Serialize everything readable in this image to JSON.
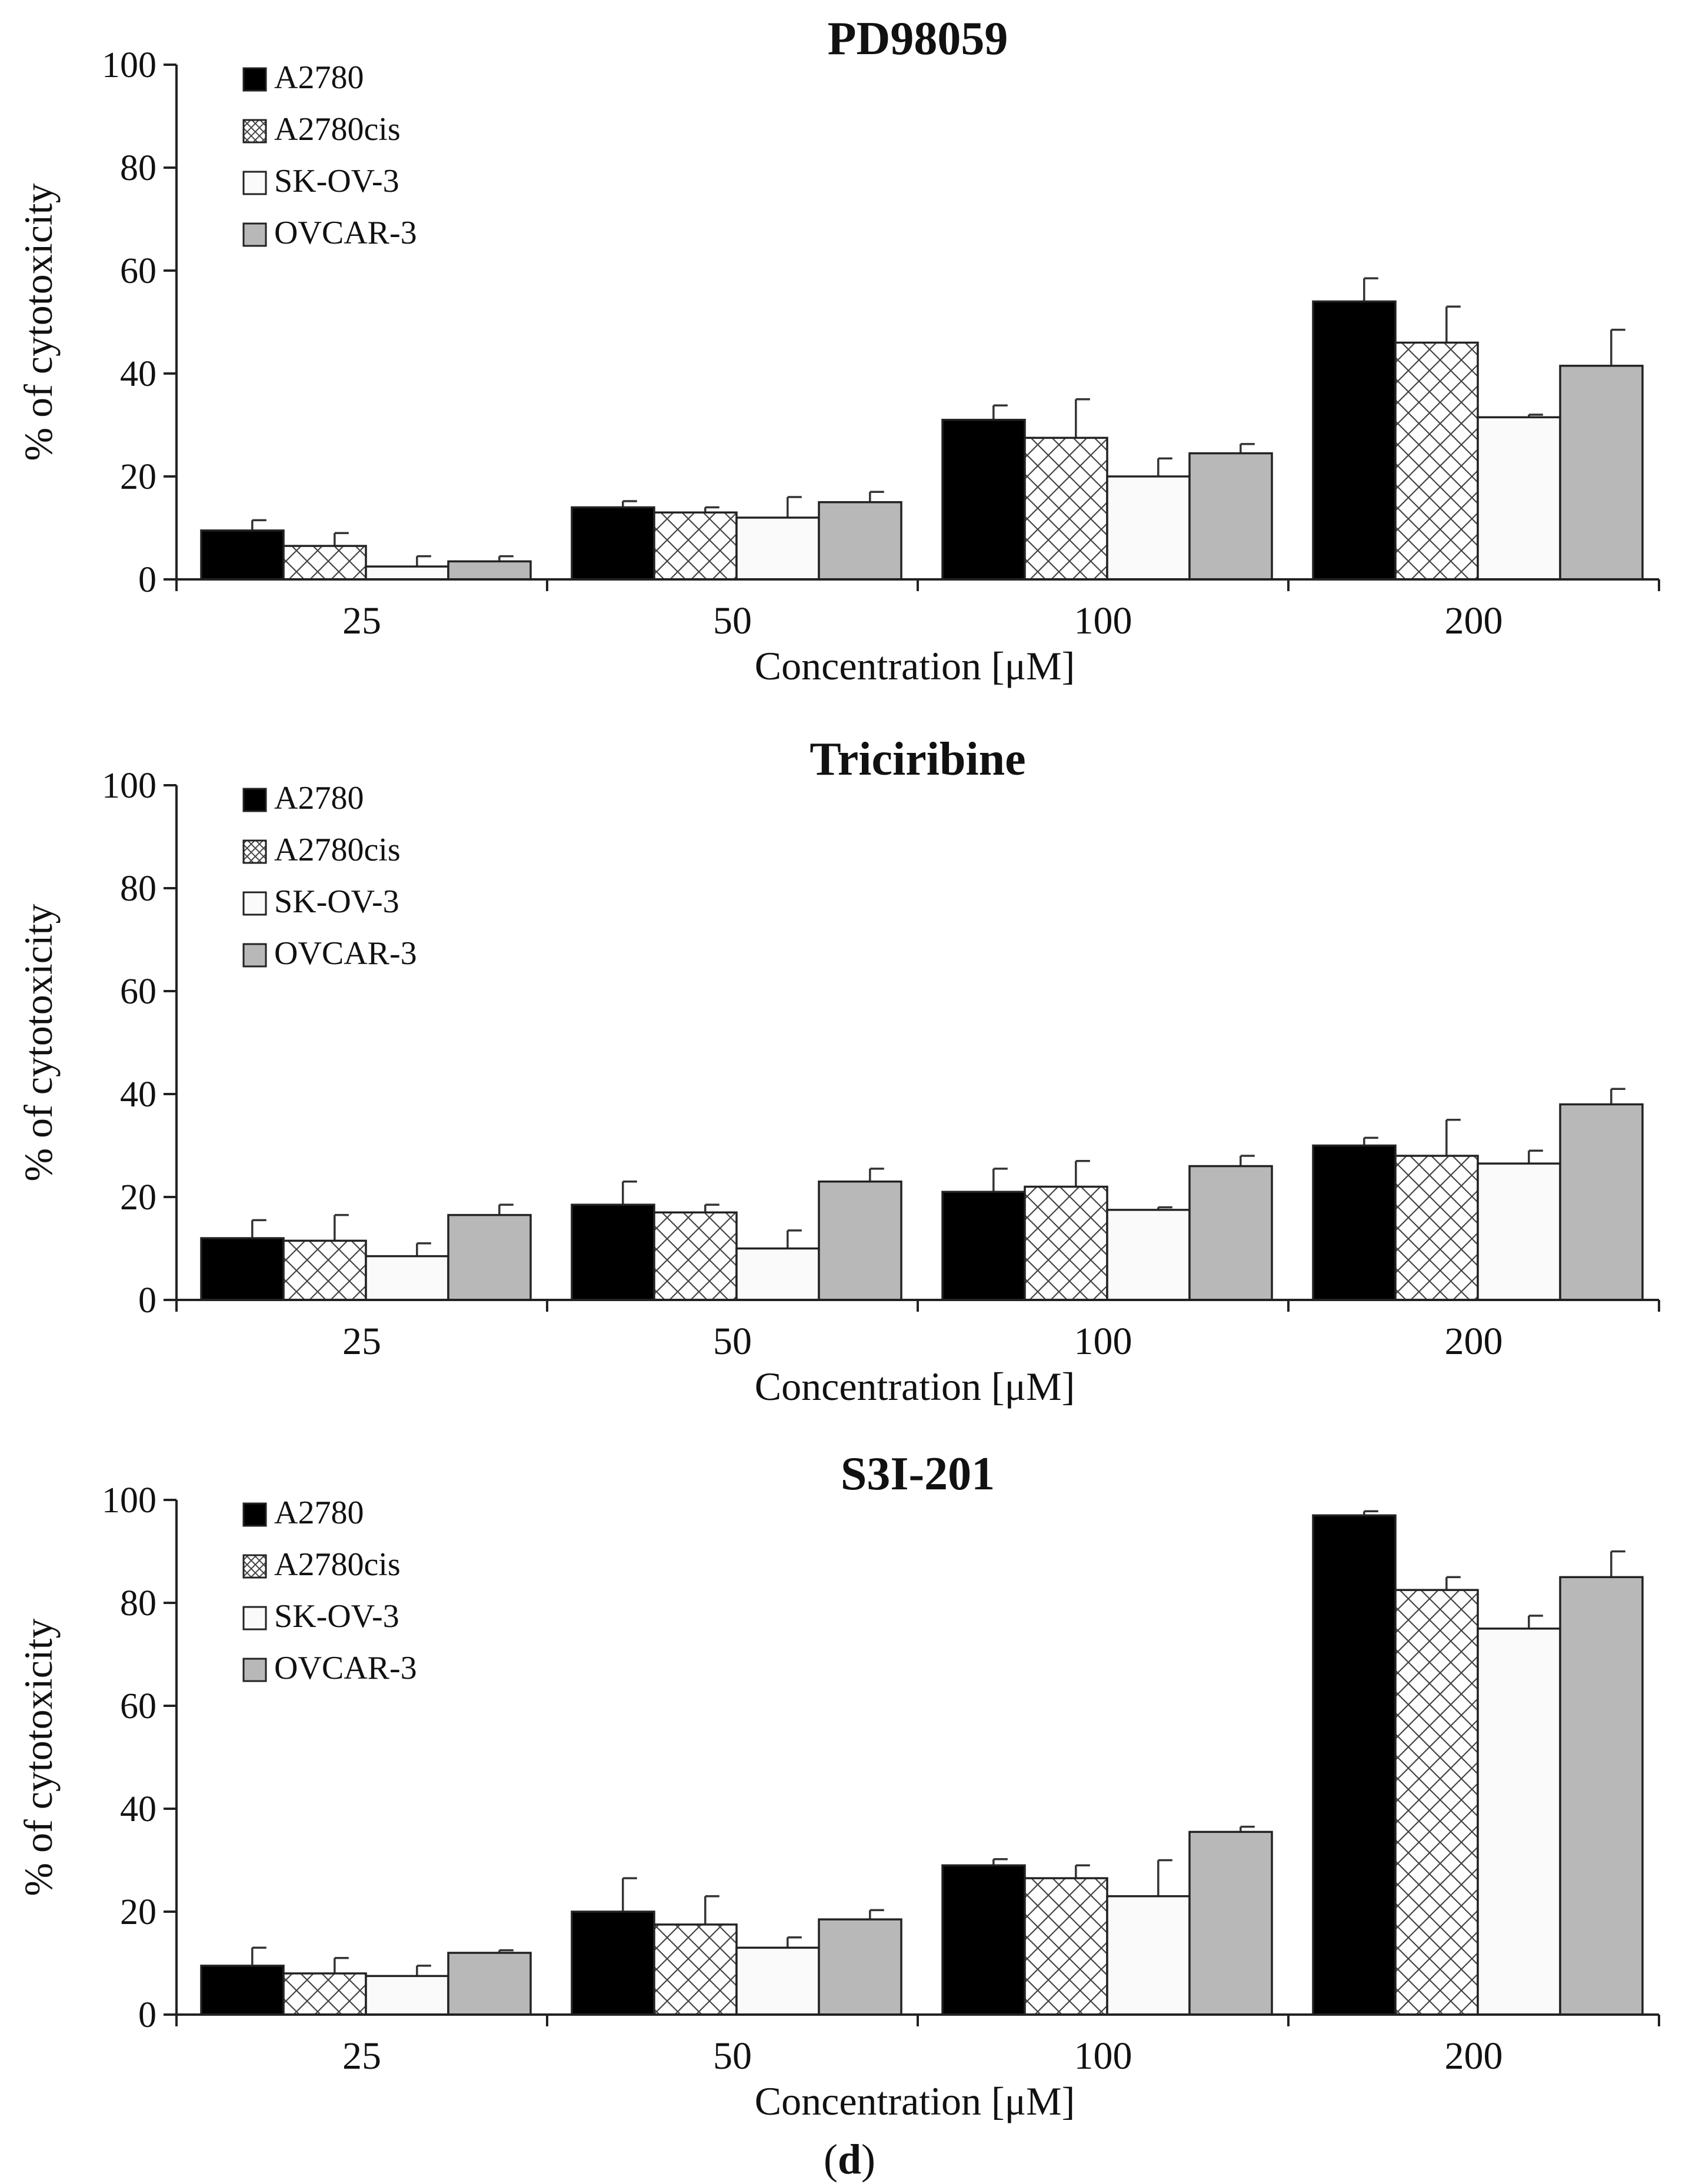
{
  "figure_label": {
    "open": "(",
    "letter": "d",
    "close": ")"
  },
  "colors": {
    "A2780": "#000000",
    "A2780cis": "crosshatch",
    "SK-OV-3": "#fafafa",
    "OVCAR-3": "#b8b8b8",
    "axis": "#222222"
  },
  "chart_data": [
    {
      "type": "bar",
      "title": "PD98059",
      "xlabel": "Concentration [μM]",
      "ylabel": "% of cytotoxicity",
      "ylim": [
        0,
        100
      ],
      "yticks": [
        "0",
        "20",
        "40",
        "60",
        "80",
        "100"
      ],
      "categories": [
        "25",
        "50",
        "100",
        "200"
      ],
      "legend_position": "top-left",
      "grid": false,
      "series": [
        {
          "name": "A2780",
          "values": [
            9.5,
            14,
            31,
            54
          ],
          "errors": [
            2,
            1.2,
            2.8,
            4.5
          ]
        },
        {
          "name": "A2780cis",
          "values": [
            6.5,
            13,
            27.5,
            46
          ],
          "errors": [
            2.5,
            1,
            7.5,
            7
          ]
        },
        {
          "name": "SK-OV-3",
          "values": [
            2.5,
            12,
            20,
            31.5
          ],
          "errors": [
            2,
            4,
            3.5,
            0.5
          ]
        },
        {
          "name": "OVCAR-3",
          "values": [
            3.5,
            15,
            24.5,
            41.5
          ],
          "errors": [
            1,
            2,
            1.8,
            7
          ]
        }
      ]
    },
    {
      "type": "bar",
      "title": "Triciribine",
      "xlabel": "Concentration [μM]",
      "ylabel": "% of cytotoxicity",
      "ylim": [
        0,
        100
      ],
      "yticks": [
        "0",
        "20",
        "40",
        "60",
        "80",
        "100"
      ],
      "categories": [
        "25",
        "50",
        "100",
        "200"
      ],
      "legend_position": "top-left",
      "grid": false,
      "series": [
        {
          "name": "A2780",
          "values": [
            12,
            18.5,
            21,
            30
          ],
          "errors": [
            3.5,
            4.5,
            4.5,
            1.5
          ]
        },
        {
          "name": "A2780cis",
          "values": [
            11.5,
            17,
            22,
            28
          ],
          "errors": [
            5,
            1.5,
            5,
            7
          ]
        },
        {
          "name": "SK-OV-3",
          "values": [
            8.5,
            10,
            17.5,
            26.5
          ],
          "errors": [
            2.5,
            3.5,
            0.5,
            2.5
          ]
        },
        {
          "name": "OVCAR-3",
          "values": [
            16.5,
            23,
            26,
            38
          ],
          "errors": [
            2,
            2.5,
            2,
            3
          ]
        }
      ]
    },
    {
      "type": "bar",
      "title": "S3I-201",
      "xlabel": "Concentration [μM]",
      "ylabel": "% of cytotoxicity",
      "ylim": [
        0,
        100
      ],
      "yticks": [
        "0",
        "20",
        "40",
        "60",
        "80",
        "100"
      ],
      "categories": [
        "25",
        "50",
        "100",
        "200"
      ],
      "legend_position": "top-left",
      "grid": false,
      "series": [
        {
          "name": "A2780",
          "values": [
            9.5,
            20,
            29,
            97
          ],
          "errors": [
            3.5,
            6.5,
            1.2,
            0.8
          ]
        },
        {
          "name": "A2780cis",
          "values": [
            8,
            17.5,
            26.5,
            82.5
          ],
          "errors": [
            3,
            5.5,
            2.5,
            2.5
          ]
        },
        {
          "name": "SK-OV-3",
          "values": [
            7.5,
            13,
            23,
            75
          ],
          "errors": [
            2,
            2,
            7,
            2.5
          ]
        },
        {
          "name": "OVCAR-3",
          "values": [
            12,
            18.5,
            35.5,
            85
          ],
          "errors": [
            0.5,
            1.8,
            1,
            5
          ]
        }
      ]
    }
  ]
}
